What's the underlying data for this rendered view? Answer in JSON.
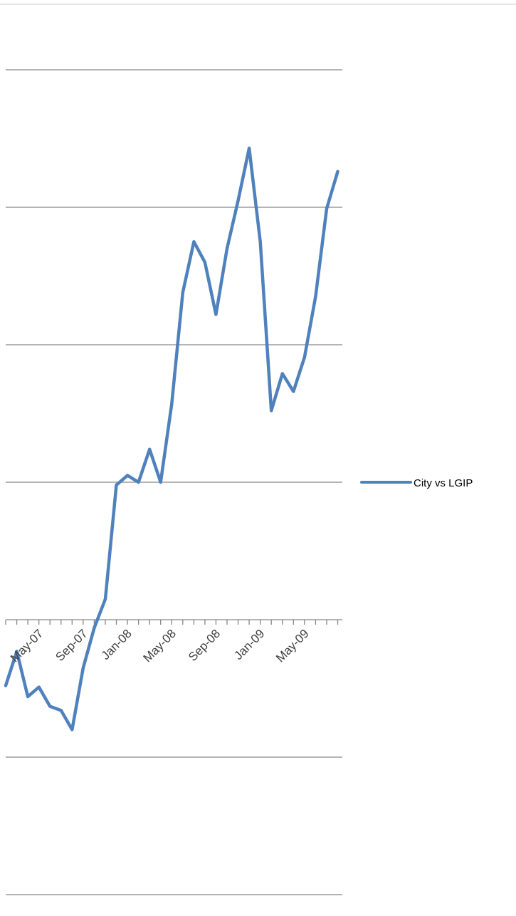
{
  "chart_data": {
    "type": "line",
    "title": "",
    "xlabel": "",
    "ylabel": "",
    "grid": true,
    "legend_position": "right",
    "line_color": "#4F81BD",
    "gridline_color": "#868686",
    "x_tick_labels": [
      "May-07",
      "Sep-07",
      "Jan-08",
      "May-08",
      "Sep-08",
      "Jan-09",
      "May-09"
    ],
    "x_tick_months": [
      "2007-05",
      "2007-09",
      "2008-01",
      "2008-05",
      "2008-09",
      "2009-01",
      "2009-05"
    ],
    "ylim": [
      -3,
      3
    ],
    "y_gridlines": [
      -3,
      -2,
      -1,
      0,
      1,
      2,
      3,
      4
    ],
    "series": [
      {
        "name": "City vs LGIP",
        "x": [
          "2007-03",
          "2007-04",
          "2007-05",
          "2007-06",
          "2007-07",
          "2007-08",
          "2007-09",
          "2007-10",
          "2007-11",
          "2007-12",
          "2008-01",
          "2008-02",
          "2008-03",
          "2008-04",
          "2008-05",
          "2008-06",
          "2008-07",
          "2008-08",
          "2008-09",
          "2008-10",
          "2008-11",
          "2008-12",
          "2009-01",
          "2009-02",
          "2009-03",
          "2009-04",
          "2009-05",
          "2009-06",
          "2009-07",
          "2009-08",
          "2009-09"
        ],
        "values": [
          -0.48,
          -0.23,
          -0.56,
          -0.49,
          -0.63,
          -0.66,
          -0.8,
          -0.35,
          -0.06,
          0.15,
          0.98,
          1.05,
          1.0,
          1.24,
          1.0,
          1.57,
          2.38,
          2.75,
          2.6,
          2.22,
          2.7,
          3.05,
          3.43,
          2.75,
          1.52,
          1.79,
          1.66,
          1.91,
          2.35,
          2.99,
          3.26
        ]
      }
    ]
  }
}
